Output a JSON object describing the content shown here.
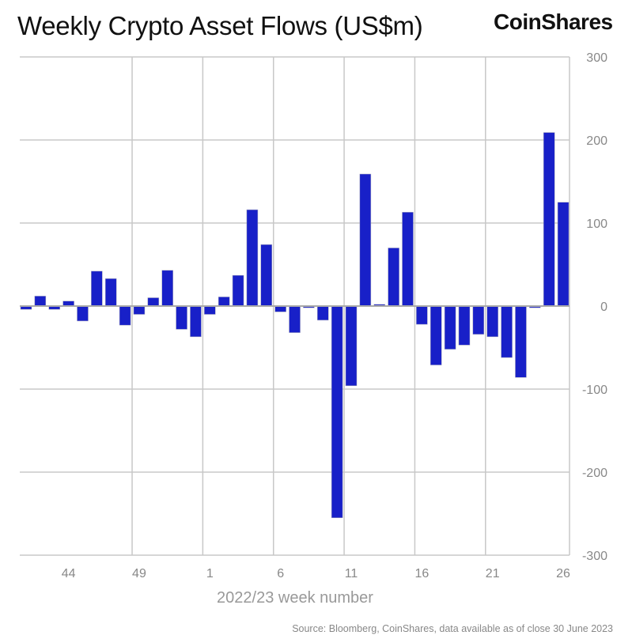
{
  "title": "Weekly Crypto Asset Flows (US$m)",
  "logo": "CoinShares",
  "source": "Source: Bloomberg, CoinShares, data available as of close 30 June 2023",
  "chart_data": {
    "type": "bar",
    "title": "Weekly Crypto Asset Flows (US$m)",
    "xlabel": "2022/23 week number",
    "ylabel": "",
    "ylim": [
      -300,
      300
    ],
    "yticks": [
      300,
      200,
      100,
      0,
      -100,
      -200,
      -300
    ],
    "xtick_labels": [
      "44",
      "49",
      "1",
      "6",
      "11",
      "16",
      "21",
      "26"
    ],
    "grid": true,
    "bar_color": "#1820c8",
    "categories": [
      "41",
      "42",
      "43",
      "44",
      "45",
      "46",
      "47",
      "48",
      "49",
      "50",
      "51",
      "52",
      "53",
      "1",
      "2",
      "3",
      "4",
      "5",
      "6",
      "7",
      "8",
      "9",
      "10",
      "11",
      "12",
      "13",
      "14",
      "15",
      "16",
      "17",
      "18",
      "19",
      "20",
      "21",
      "22",
      "23",
      "24",
      "25",
      "26"
    ],
    "values": [
      -4,
      12,
      -4,
      6,
      -18,
      42,
      33,
      -23,
      -10,
      10,
      43,
      -28,
      -37,
      -10,
      11,
      37,
      116,
      74,
      -7,
      -32,
      -2,
      -17,
      -255,
      -96,
      159,
      2,
      70,
      113,
      -22,
      -71,
      -52,
      -47,
      -34,
      -37,
      -62,
      -86,
      -2,
      209,
      125
    ]
  }
}
